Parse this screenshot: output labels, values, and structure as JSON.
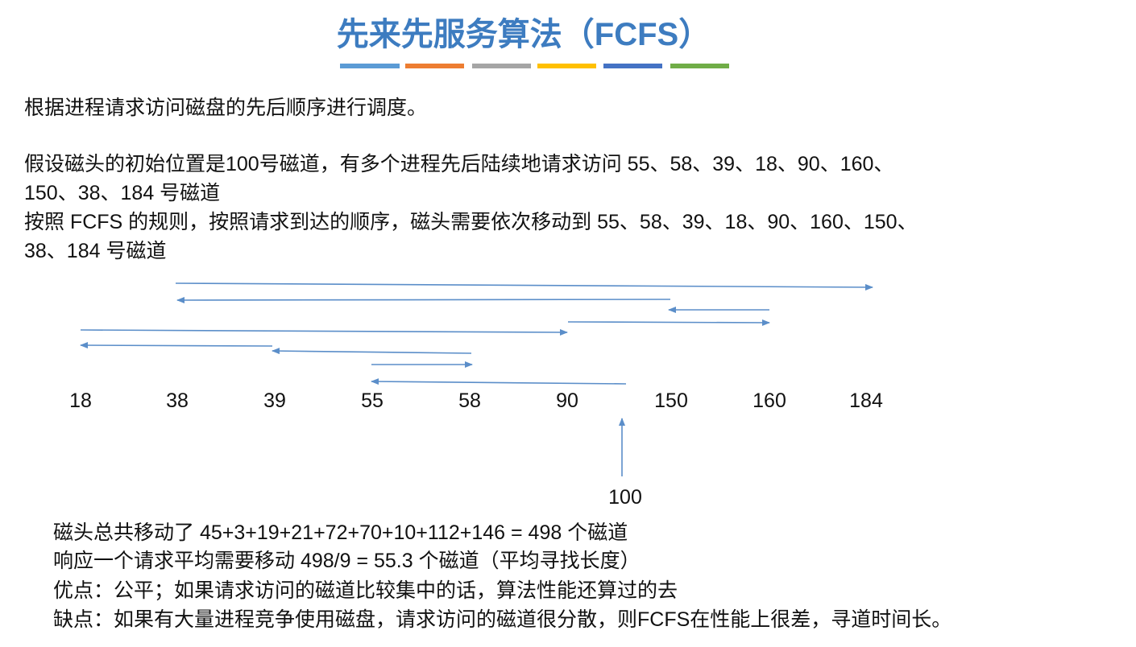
{
  "title": "先来先服务算法（FCFS）",
  "intro": "根据进程请求访问磁盘的先后顺序进行调度。",
  "description": [
    "假设磁头的初始位置是100号磁道，有多个进程先后陆续地请求访问 55、58、39、18、90、160、",
    "150、38、184 号磁道",
    "按照 FCFS 的规则，按照请求到达的顺序，磁头需要依次移动到 55、58、39、18、90、160、150、",
    "38、184 号磁道"
  ],
  "diagram": {
    "tracks": [
      18,
      38,
      39,
      55,
      58,
      90,
      150,
      160,
      184
    ],
    "start": 100
  },
  "summary": [
    "磁头总共移动了  45+3+19+21+72+70+10+112+146 = 498  个磁道",
    "响应一个请求平均需要移动 498/9 = 55.3 个磁道（平均寻找长度）",
    "优点：公平；如果请求访问的磁道比较集中的话，算法性能还算过的去",
    "缺点：如果有大量进程竞争使用磁盘，请求访问的磁道很分散，则FCFS在性能上很差，寻道时间长。"
  ]
}
